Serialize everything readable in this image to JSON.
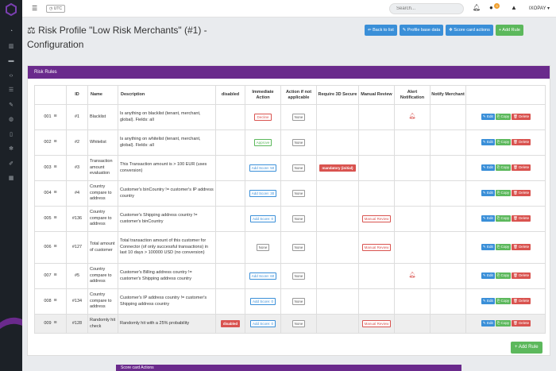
{
  "topbar": {
    "utc_label": "UTC",
    "search_placeholder": "Search...",
    "notification_count": "3",
    "user_name": "IXOPAY"
  },
  "page": {
    "title": "Risk Profile \"Low Risk Merchants\" (#1) - Configuration"
  },
  "actions": {
    "back": "Back to list",
    "profile_base": "Profile base data",
    "score_card": "Score card actions",
    "add_rule": "Add Rule"
  },
  "panel": {
    "title": "Risk Rules",
    "add_rule": "Add Rule"
  },
  "table": {
    "headers": [
      "",
      "ID",
      "Name",
      "Description",
      "disabled",
      "Immediate Action",
      "Action if not applicable",
      "Require 3D Secure",
      "Manual Review",
      "Alert Notification",
      "Notify Merchant",
      ""
    ],
    "buttons": {
      "edit": "Edit",
      "copy": "Copy",
      "delete": "Delete"
    },
    "rows": [
      {
        "order": "001",
        "id": "#1",
        "name": "Blacklist",
        "desc": "Is anything on blacklist (tenant, merchant, global). Fields: all",
        "disabled": "",
        "immediate": "Decline",
        "notapplicable": "None",
        "secure": "",
        "manual": "",
        "alert": true
      },
      {
        "order": "002",
        "id": "#2",
        "name": "Whitelist",
        "desc": "Is anything on whitelist (tenant, merchant, global). Fields: all",
        "disabled": "",
        "immediate": "Approve",
        "notapplicable": "None",
        "secure": "",
        "manual": "",
        "alert": false
      },
      {
        "order": "003",
        "id": "#3",
        "name": "Transaction amount evaluation",
        "desc": "This Transaction amount is > 100 EUR (uses conversion)",
        "disabled": "",
        "immediate": "Add Score: 50",
        "notapplicable": "None",
        "secure": "mandatory (initial)",
        "manual": "",
        "alert": false
      },
      {
        "order": "004",
        "id": "#4",
        "name": "Country compare to address",
        "desc": "Customer's binCountry != customer's IP address country",
        "disabled": "",
        "immediate": "Add Score: 30",
        "notapplicable": "None",
        "secure": "",
        "manual": "",
        "alert": false
      },
      {
        "order": "005",
        "id": "#136",
        "name": "Country compare to address",
        "desc": "Customer's Shipping address country != customer's binCountry",
        "disabled": "",
        "immediate": "Add Score: 0",
        "notapplicable": "None",
        "secure": "",
        "manual": "Manual Review",
        "alert": false
      },
      {
        "order": "006",
        "id": "#127",
        "name": "Total amount of customer",
        "desc": "Total transaction amount of this customer for Connector (of only successful transactions) in last 10 days > 100000 USD (no conversion)",
        "disabled": "",
        "immediate": "None",
        "notapplicable": "None",
        "secure": "",
        "manual": "Manual Review",
        "alert": false
      },
      {
        "order": "007",
        "id": "#5",
        "name": "Country compare to address",
        "desc": "Customer's Billing address country != customer's Shipping address country",
        "disabled": "",
        "immediate": "Add Score: 60",
        "notapplicable": "None",
        "secure": "",
        "manual": "",
        "alert": true
      },
      {
        "order": "008",
        "id": "#134",
        "name": "Country compare to address",
        "desc": "Customer's IP address country != customer's Shipping address country",
        "disabled": "",
        "immediate": "Add Score: 0",
        "notapplicable": "None",
        "secure": "",
        "manual": "",
        "alert": false
      },
      {
        "order": "009",
        "id": "#128",
        "name": "Randomly hit check",
        "desc": "Randomly hit with a 25% probability",
        "disabled": "disabled",
        "immediate": "Add Score: 0",
        "notapplicable": "None",
        "secure": "",
        "manual": "Manual Review",
        "alert": false
      }
    ]
  },
  "scorecard": {
    "title": "Score card Actions"
  },
  "colors": {
    "sidebar": "#1c2127",
    "panel_header": "#6a2a8c",
    "primary": "#3a8fd8",
    "success": "#5cb85c",
    "danger": "#d9534f"
  }
}
